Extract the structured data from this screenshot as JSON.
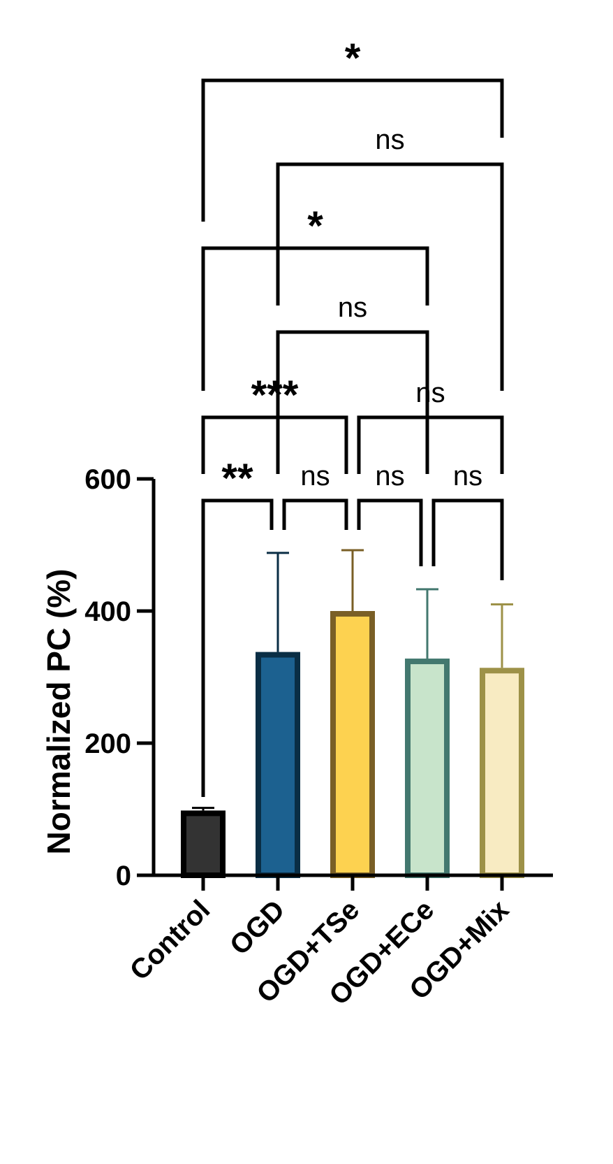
{
  "chart_data": {
    "type": "bar",
    "title": "",
    "xlabel": "",
    "ylabel": "Normalized PC (%)",
    "ylim": [
      0,
      600
    ],
    "yticks": [
      0,
      200,
      400,
      600
    ],
    "grid": false,
    "categories": [
      "Control",
      "OGD",
      "OGD+TSe",
      "OGD+ECe",
      "OGD+Mix"
    ],
    "values": [
      98,
      338,
      400,
      328,
      314
    ],
    "errors": [
      4,
      150,
      92,
      105,
      96
    ],
    "fill_colors": [
      "#333333",
      "#1c6190",
      "#fdd250",
      "#c8e4cb",
      "#f8ebc2"
    ],
    "edge_colors": [
      "#000000",
      "#0a2e45",
      "#7a5f26",
      "#43786f",
      "#9d9148"
    ],
    "comparisons": [
      {
        "from": 0,
        "to": 1,
        "label": "**",
        "level": 0
      },
      {
        "from": 1,
        "to": 2,
        "label": "ns",
        "level": 0
      },
      {
        "from": 2,
        "to": 3,
        "label": "ns",
        "level": 0
      },
      {
        "from": 3,
        "to": 4,
        "label": "ns",
        "level": 0
      },
      {
        "from": 0,
        "to": 2,
        "label": "***",
        "level": 1
      },
      {
        "from": 2,
        "to": 4,
        "label": "ns",
        "level": 1
      },
      {
        "from": 1,
        "to": 3,
        "label": "ns",
        "level": 2
      },
      {
        "from": 0,
        "to": 3,
        "label": "*",
        "level": 3
      },
      {
        "from": 1,
        "to": 4,
        "label": "ns",
        "level": 4
      },
      {
        "from": 0,
        "to": 4,
        "label": "*",
        "level": 5
      }
    ]
  }
}
